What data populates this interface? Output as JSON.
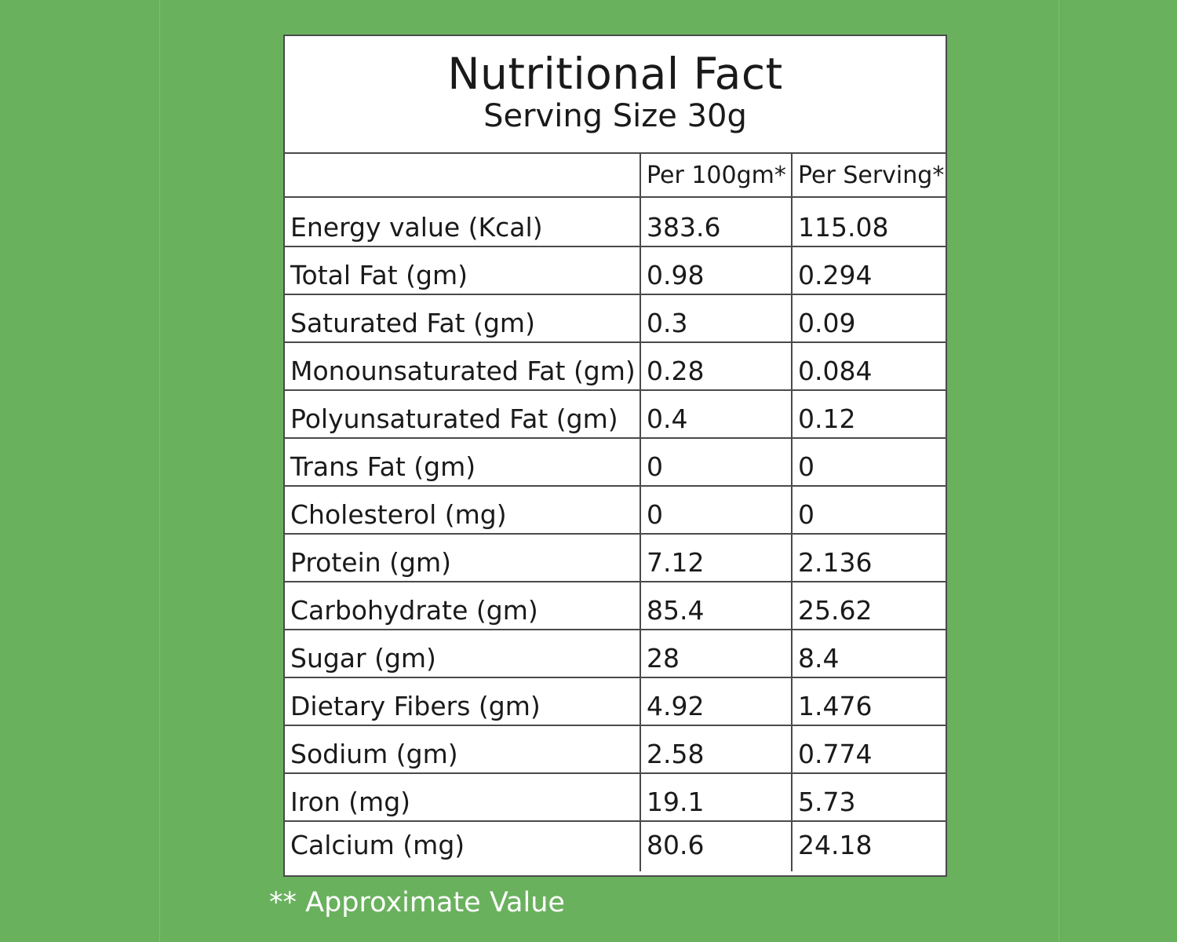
{
  "header": {
    "title": "Nutritional Fact",
    "subtitle": "Serving Size 30g"
  },
  "table": {
    "columns": [
      "",
      "Per 100gm*",
      "Per Serving*"
    ],
    "rows": [
      [
        "Energy value (Kcal)",
        "383.6",
        "115.08"
      ],
      [
        "Total Fat (gm)",
        "0.98",
        "0.294"
      ],
      [
        "Saturated Fat (gm)",
        "0.3",
        "0.09"
      ],
      [
        "Monounsaturated Fat (gm)",
        "0.28",
        "0.084"
      ],
      [
        "Polyunsaturated Fat (gm)",
        "0.4",
        "0.12"
      ],
      [
        "Trans Fat (gm)",
        "0",
        "0"
      ],
      [
        "Cholesterol (mg)",
        "0",
        "0"
      ],
      [
        "Protein (gm)",
        "7.12",
        "2.136"
      ],
      [
        "Carbohydrate (gm)",
        "85.4",
        "25.62"
      ],
      [
        "Sugar (gm)",
        "28",
        "8.4"
      ],
      [
        "Dietary Fibers (gm)",
        "4.92",
        "1.476"
      ],
      [
        "Sodium (gm)",
        "2.58",
        "0.774"
      ],
      [
        "Iron (mg)",
        "19.1",
        "5.73"
      ],
      [
        "Calcium (mg)",
        "80.6",
        "24.18"
      ]
    ]
  },
  "footnote": "** Approximate Value",
  "colors": {
    "background": "#6ab15e",
    "panel": "#ffffff",
    "border": "#4a4a4a",
    "text": "#1a1a1a",
    "footnote_text": "#ffffff"
  }
}
